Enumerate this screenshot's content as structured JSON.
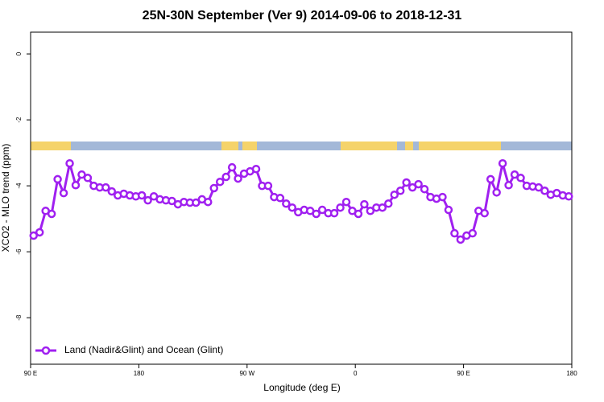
{
  "chart_data": {
    "type": "line",
    "title": "25N-30N September (Ver 9)   2014-09-06 to 2018-12-31",
    "xlabel": "Longitude (deg E)",
    "ylabel": "XCO2 - MLO trend (ppm)",
    "xlim": [
      90,
      540
    ],
    "ylim": [
      -9.41,
      0.66
    ],
    "xticks": [
      {
        "value": 90,
        "label": "90 E"
      },
      180,
      {
        "value": 270,
        "label": "90 W"
      },
      {
        "value": 360,
        "label": "0"
      },
      {
        "value": 450,
        "label": "90 E"
      },
      {
        "value": 540,
        "label": "180"
      }
    ],
    "yticks": [
      0,
      -2,
      -4,
      -6,
      -8
    ],
    "legend": "bottom-left",
    "x": [
      92.5,
      97.5,
      102.5,
      107.5,
      112.5,
      117.5,
      122.5,
      127.5,
      132.5,
      137.5,
      142.5,
      147.5,
      152.5,
      157.5,
      162.5,
      167.5,
      172.5,
      177.5,
      182.5,
      187.5,
      192.5,
      197.5,
      202.5,
      207.5,
      212.5,
      217.5,
      222.5,
      227.5,
      232.5,
      237.5,
      242.5,
      247.5,
      252.5,
      257.5,
      262.5,
      267.5,
      272.5,
      277.5,
      282.5,
      287.5,
      292.5,
      297.5,
      302.5,
      307.5,
      312.5,
      317.5,
      322.5,
      327.5,
      332.5,
      337.5,
      342.5,
      347.5,
      352.5,
      357.5,
      362.5,
      367.5,
      372.5,
      377.5,
      382.5,
      387.5,
      392.5,
      397.5,
      402.5,
      407.5,
      412.5,
      417.5,
      422.5,
      427.5,
      432.5,
      437.5,
      442.5,
      447.5,
      452.5,
      457.5,
      462.5,
      467.5,
      472.5,
      477.5,
      482.5,
      487.5,
      492.5,
      497.5,
      502.5,
      507.5,
      512.5,
      517.5,
      522.5,
      527.5,
      532.5,
      537.5
    ],
    "series": [
      {
        "name": "Land (Nadir&Glint) and Ocean (Glint)",
        "color": "#a020f0",
        "values": [
          -5.51,
          -5.41,
          -4.76,
          -4.85,
          -3.8,
          -4.22,
          -3.32,
          -3.98,
          -3.66,
          -3.76,
          -4.0,
          -4.05,
          -4.05,
          -4.17,
          -4.29,
          -4.24,
          -4.29,
          -4.32,
          -4.29,
          -4.44,
          -4.32,
          -4.41,
          -4.44,
          -4.46,
          -4.56,
          -4.49,
          -4.51,
          -4.51,
          -4.41,
          -4.49,
          -4.07,
          -3.88,
          -3.73,
          -3.44,
          -3.78,
          -3.63,
          -3.56,
          -3.49,
          -4.0,
          -4.0,
          -4.34,
          -4.37,
          -4.54,
          -4.66,
          -4.8,
          -4.73,
          -4.76,
          -4.85,
          -4.73,
          -4.83,
          -4.83,
          -4.66,
          -4.49,
          -4.76,
          -4.85,
          -4.56,
          -4.76,
          -4.66,
          -4.66,
          -4.54,
          -4.27,
          -4.15,
          -3.9,
          -4.05,
          -3.95,
          -4.1,
          -4.34,
          -4.39,
          -4.34,
          -4.73,
          -5.44,
          -5.63,
          -5.51,
          -5.44,
          -4.76,
          -4.83,
          -3.8,
          -4.2,
          -3.32,
          -3.98,
          -3.66,
          -3.76,
          -4.0,
          -4.02,
          -4.05,
          -4.15,
          -4.27,
          -4.22,
          -4.29,
          -4.32
        ]
      }
    ]
  }
}
